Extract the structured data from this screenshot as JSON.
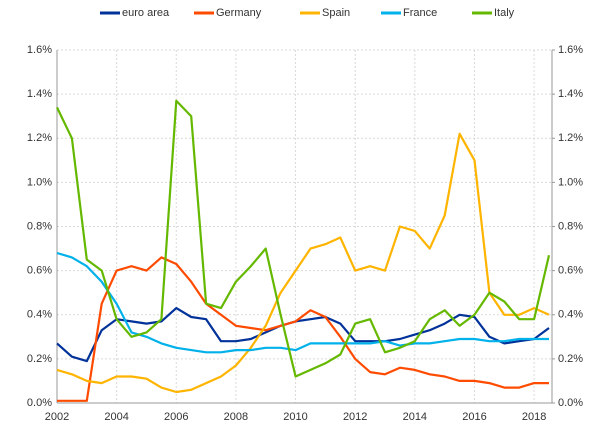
{
  "chart_data": {
    "type": "line",
    "x": [
      2002,
      2002.5,
      2003,
      2003.5,
      2004,
      2004.5,
      2005,
      2005.5,
      2006,
      2006.5,
      2007,
      2007.5,
      2008,
      2008.5,
      2009,
      2009.5,
      2010,
      2010.5,
      2011,
      2011.5,
      2012,
      2012.5,
      2013,
      2013.5,
      2014,
      2014.5,
      2015,
      2015.5,
      2016,
      2016.5,
      2017,
      2017.5,
      2018,
      2018.5
    ],
    "series": [
      {
        "name": "euro area",
        "color": "#003299",
        "values": [
          0.27,
          0.21,
          0.19,
          0.33,
          0.38,
          0.37,
          0.36,
          0.37,
          0.43,
          0.39,
          0.38,
          0.28,
          0.28,
          0.29,
          0.32,
          0.35,
          0.37,
          0.38,
          0.39,
          0.36,
          0.28,
          0.28,
          0.28,
          0.29,
          0.31,
          0.33,
          0.36,
          0.4,
          0.39,
          0.3,
          0.27,
          0.28,
          0.29,
          0.34
        ]
      },
      {
        "name": "Germany",
        "color": "#ff4b00",
        "values": [
          0.01,
          0.01,
          0.01,
          0.45,
          0.6,
          0.62,
          0.6,
          0.66,
          0.63,
          0.55,
          0.45,
          0.4,
          0.35,
          0.34,
          0.33,
          0.35,
          0.37,
          0.42,
          0.39,
          0.3,
          0.2,
          0.14,
          0.13,
          0.16,
          0.15,
          0.13,
          0.12,
          0.1,
          0.1,
          0.09,
          0.07,
          0.07,
          0.09,
          0.09
        ]
      },
      {
        "name": "Spain",
        "color": "#ffb400",
        "values": [
          0.15,
          0.13,
          0.1,
          0.09,
          0.12,
          0.12,
          0.11,
          0.07,
          0.05,
          0.06,
          0.09,
          0.12,
          0.17,
          0.25,
          0.35,
          0.5,
          0.6,
          0.7,
          0.72,
          0.75,
          0.6,
          0.62,
          0.6,
          0.8,
          0.78,
          0.7,
          0.85,
          1.22,
          1.1,
          0.5,
          0.4,
          0.4,
          0.43,
          0.4
        ]
      },
      {
        "name": "France",
        "color": "#00b1ea",
        "values": [
          0.68,
          0.66,
          0.62,
          0.55,
          0.45,
          0.32,
          0.3,
          0.27,
          0.25,
          0.24,
          0.23,
          0.23,
          0.24,
          0.24,
          0.25,
          0.25,
          0.24,
          0.27,
          0.27,
          0.27,
          0.27,
          0.27,
          0.28,
          0.26,
          0.27,
          0.27,
          0.28,
          0.29,
          0.29,
          0.28,
          0.28,
          0.29,
          0.29,
          0.29
        ]
      },
      {
        "name": "Italy",
        "color": "#65b800",
        "values": [
          1.34,
          1.2,
          0.65,
          0.6,
          0.38,
          0.3,
          0.32,
          0.38,
          1.37,
          1.3,
          0.45,
          0.43,
          0.55,
          0.62,
          0.7,
          0.4,
          0.12,
          0.15,
          0.18,
          0.22,
          0.36,
          0.38,
          0.23,
          0.25,
          0.28,
          0.38,
          0.42,
          0.35,
          0.4,
          0.5,
          0.46,
          0.38,
          0.38,
          0.67
        ]
      }
    ],
    "xlim": [
      2002,
      2018.6
    ],
    "xticks": [
      2002,
      2004,
      2006,
      2008,
      2010,
      2012,
      2014,
      2016,
      2018
    ],
    "ylim": [
      0,
      1.6
    ],
    "yticks": [
      {
        "value": 0,
        "label": "0.0%"
      },
      {
        "value": 0.2,
        "label": "0.2%"
      },
      {
        "value": 0.4,
        "label": "0.4%"
      },
      {
        "value": 0.6,
        "label": "0.6%"
      },
      {
        "value": 0.8,
        "label": "0.8%"
      },
      {
        "value": 1.0,
        "label": "1.0%"
      },
      {
        "value": 1.2,
        "label": "1.2%"
      },
      {
        "value": 1.4,
        "label": "1.4%"
      },
      {
        "value": 1.6,
        "label": "1.6%"
      }
    ],
    "y2lim": [
      0,
      1.6
    ],
    "y2ticks": [
      {
        "value": 0,
        "label": "0.0%"
      },
      {
        "value": 0.2,
        "label": "0.2%"
      },
      {
        "value": 0.4,
        "label": "0.4%"
      },
      {
        "value": 0.6,
        "label": "0.6%"
      },
      {
        "value": 0.8,
        "label": "0.8%"
      },
      {
        "value": 1.0,
        "label": "1.0%"
      },
      {
        "value": 1.2,
        "label": "1.2%"
      },
      {
        "value": 1.4,
        "label": "1.4%"
      },
      {
        "value": 1.6,
        "label": "1.6%"
      }
    ],
    "grid": true,
    "legend": "top"
  }
}
